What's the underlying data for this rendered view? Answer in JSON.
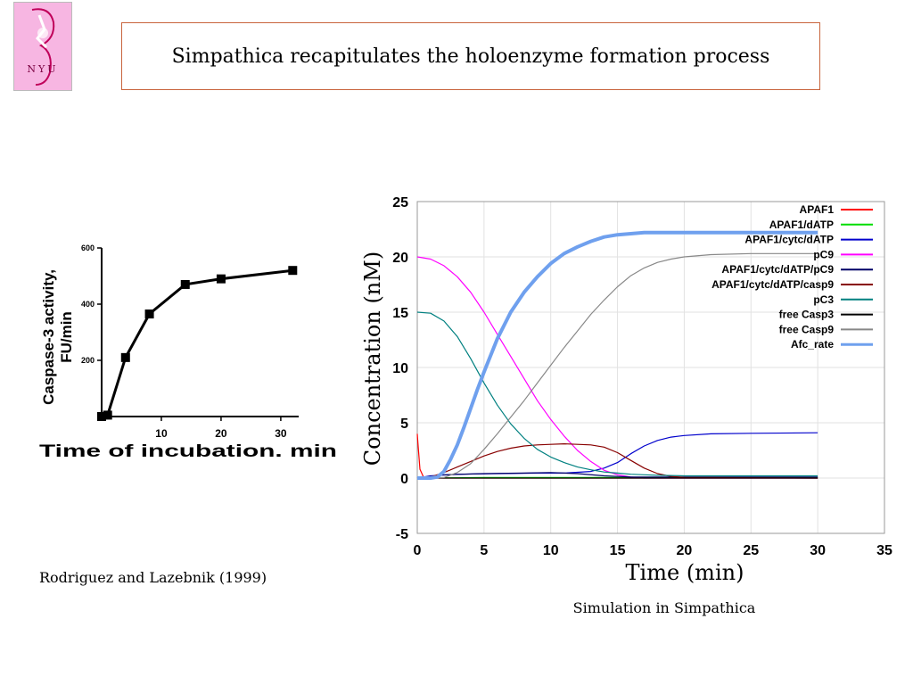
{
  "header": {
    "title": "Simpathica recapitulates the holoenzyme formation process",
    "logo_text": "NYU"
  },
  "captions": {
    "left": "Rodriguez and Lazebnik (1999)",
    "right": "Simulation in Simpathica"
  },
  "chart_data": [
    {
      "type": "line",
      "title": "",
      "xlabel": "Time of incubation. min",
      "ylabel": "Caspase-3 activity, FU/min",
      "xlim": [
        0,
        33
      ],
      "ylim": [
        0,
        600
      ],
      "xticks": [
        10,
        20,
        30
      ],
      "yticks": [
        200,
        400,
        600
      ],
      "grid": false,
      "series": [
        {
          "x": [
            0,
            1,
            4,
            8,
            14,
            20,
            32
          ],
          "y": [
            0,
            5,
            210,
            365,
            470,
            490,
            520
          ]
        }
      ]
    },
    {
      "type": "line",
      "title": "",
      "xlabel": "Time (min)",
      "ylabel": "Concentration (nM)",
      "xlim": [
        0,
        35
      ],
      "ylim": [
        -5,
        25
      ],
      "xticks": [
        0,
        5,
        10,
        15,
        20,
        25,
        30,
        35
      ],
      "yticks": [
        -5,
        0,
        5,
        10,
        15,
        20,
        25
      ],
      "grid": true,
      "legend_position": "top-right",
      "series": [
        {
          "name": "APAF1",
          "color": "#ff0000",
          "x": [
            0,
            0.05,
            0.2,
            0.5,
            30
          ],
          "y": [
            4,
            3.2,
            0.8,
            0,
            0
          ]
        },
        {
          "name": "APAF1/dATP",
          "color": "#00dd00",
          "x": [
            0,
            5,
            10,
            30
          ],
          "y": [
            0,
            0.05,
            0.05,
            0.05
          ]
        },
        {
          "name": "APAF1/cytc/dATP",
          "color": "#0000cc",
          "x": [
            0,
            1,
            3,
            6,
            9,
            11,
            13,
            14,
            15,
            16,
            17,
            18,
            19,
            20,
            22,
            25,
            30
          ],
          "y": [
            0,
            0.2,
            0.35,
            0.4,
            0.45,
            0.45,
            0.6,
            0.9,
            1.4,
            2.2,
            2.9,
            3.4,
            3.7,
            3.85,
            4,
            4.05,
            4.1
          ]
        },
        {
          "name": "pC9",
          "color": "#ff00ff",
          "x": [
            0,
            1,
            2,
            3,
            4,
            5,
            6,
            7,
            8,
            9,
            10,
            11,
            12,
            13,
            14,
            15,
            16,
            17,
            30
          ],
          "y": [
            20,
            19.8,
            19.2,
            18.2,
            16.8,
            15,
            13,
            11,
            9,
            7,
            5.3,
            3.8,
            2.5,
            1.5,
            0.7,
            0.3,
            0.1,
            0,
            0
          ]
        },
        {
          "name": "APAF1/cytc/dATP/pC9",
          "color": "#000066",
          "x": [
            0,
            2,
            5,
            8,
            10,
            12,
            14,
            16,
            30
          ],
          "y": [
            0,
            0.3,
            0.4,
            0.45,
            0.5,
            0.4,
            0.2,
            0.1,
            0.1
          ]
        },
        {
          "name": "APAF1/cytc/dATP/casp9",
          "color": "#880000",
          "x": [
            0,
            1,
            2,
            3,
            4,
            5,
            6,
            7,
            8,
            9,
            10,
            11,
            12,
            13,
            14,
            15,
            16,
            17,
            18,
            19,
            20,
            30
          ],
          "y": [
            0,
            0.1,
            0.5,
            1.0,
            1.5,
            2.0,
            2.4,
            2.7,
            2.9,
            3.0,
            3.05,
            3.1,
            3.05,
            3.0,
            2.8,
            2.3,
            1.6,
            0.9,
            0.4,
            0.15,
            0.05,
            0
          ]
        },
        {
          "name": "pC3",
          "color": "#008080",
          "x": [
            0,
            1,
            2,
            3,
            4,
            5,
            6,
            7,
            8,
            9,
            10,
            11,
            12,
            13,
            14,
            15,
            16,
            17,
            18,
            20,
            30
          ],
          "y": [
            15,
            14.9,
            14.2,
            12.8,
            10.8,
            8.6,
            6.6,
            4.9,
            3.6,
            2.6,
            1.9,
            1.4,
            1.0,
            0.75,
            0.55,
            0.45,
            0.35,
            0.3,
            0.25,
            0.2,
            0.2
          ]
        },
        {
          "name": "free Casp3",
          "color": "#000000",
          "x": [
            0,
            30
          ],
          "y": [
            0,
            0
          ]
        },
        {
          "name": "free Casp9",
          "color": "#888888",
          "x": [
            0,
            1,
            2,
            3,
            4,
            5,
            6,
            7,
            8,
            9,
            10,
            11,
            12,
            13,
            14,
            15,
            16,
            17,
            18,
            19,
            20,
            22,
            25,
            30
          ],
          "y": [
            0,
            0,
            0.05,
            0.5,
            1.3,
            2.6,
            4.0,
            5.5,
            7.0,
            8.6,
            10.2,
            11.8,
            13.3,
            14.8,
            16.1,
            17.3,
            18.3,
            19.0,
            19.5,
            19.8,
            20.0,
            20.2,
            20.3,
            20.3
          ]
        },
        {
          "name": "Afc_rate",
          "color": "#6fa0ee",
          "x": [
            0,
            1,
            1.5,
            2,
            2.5,
            3,
            3.5,
            4,
            4.5,
            5,
            6,
            7,
            8,
            9,
            10,
            11,
            12,
            13,
            14,
            15,
            16,
            17,
            18,
            20,
            25,
            30
          ],
          "y": [
            0,
            0,
            0.1,
            0.6,
            1.7,
            3.0,
            4.6,
            6.3,
            8.0,
            9.6,
            12.6,
            15.0,
            16.8,
            18.2,
            19.4,
            20.3,
            20.9,
            21.4,
            21.8,
            22.0,
            22.1,
            22.2,
            22.2,
            22.2,
            22.2,
            22.2
          ]
        }
      ]
    }
  ]
}
